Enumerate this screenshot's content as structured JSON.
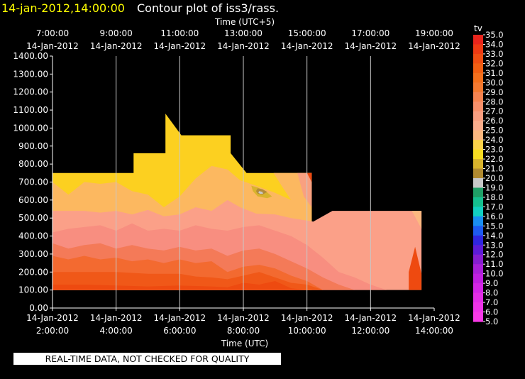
{
  "header": {
    "timestamp": "14-jan-2012,14:00:00",
    "title": "Contour plot of iss3/rass."
  },
  "footer": {
    "quality_note": "REAL-TIME DATA, NOT CHECKED FOR QUALITY"
  },
  "chart_data": {
    "type": "heatmap",
    "title": "Contour plot of iss3/rass.",
    "timestamp": "14-jan-2012,14:00:00",
    "top_axis": {
      "label": "Time (UTC+5)",
      "ticks": [
        {
          "time": "7:00:00",
          "date": "14-Jan-2012"
        },
        {
          "time": "9:00:00",
          "date": "14-Jan-2012"
        },
        {
          "time": "11:00:00",
          "date": "14-Jan-2012"
        },
        {
          "time": "13:00:00",
          "date": "14-Jan-2012"
        },
        {
          "time": "15:00:00",
          "date": "14-Jan-2012"
        },
        {
          "time": "17:00:00",
          "date": "14-Jan-2012"
        },
        {
          "time": "19:00:00",
          "date": "14-Jan-2012"
        }
      ]
    },
    "bottom_axis": {
      "label": "Time (UTC)",
      "ticks": [
        {
          "date": "14-Jan-2012",
          "time": "2:00:00"
        },
        {
          "date": "14-Jan-2012",
          "time": "4:00:00"
        },
        {
          "date": "14-Jan-2012",
          "time": "6:00:00"
        },
        {
          "date": "14-Jan-2012",
          "time": "8:00:00"
        },
        {
          "date": "14-Jan-2012",
          "time": "10:00:00"
        },
        {
          "date": "14-Jan-2012",
          "time": "12:00:00"
        },
        {
          "date": "14-Jan-2012",
          "time": "14:00:00"
        }
      ],
      "range_hours": [
        2,
        14
      ]
    },
    "y_axis": {
      "label": "",
      "ticks": [
        "1400.00",
        "1300.00",
        "1200.00",
        "1100.00",
        "1000.00",
        "900.00",
        "800.00",
        "700.00",
        "600.00",
        "500.00",
        "400.00",
        "300.00",
        "200.00",
        "100.00",
        "0.00"
      ],
      "ylim": [
        0,
        1400
      ]
    },
    "grid": true,
    "colorbar": {
      "label": "tv",
      "levels": [
        "35.0",
        "34.0",
        "33.0",
        "32.0",
        "31.0",
        "30.0",
        "29.0",
        "28.0",
        "27.0",
        "26.0",
        "25.0",
        "24.0",
        "23.0",
        "22.0",
        "21.0",
        "20.0",
        "19.0",
        "18.0",
        "17.0",
        "16.0",
        "15.0",
        "14.0",
        "13.0",
        "12.0",
        "11.0",
        "10.0",
        "9.0",
        "8.0",
        "7.0",
        "6.0",
        "5.0"
      ],
      "colors": [
        "#e8251c",
        "#ee3a13",
        "#f04e12",
        "#f25f12",
        "#f4701c",
        "#f57a30",
        "#f78450",
        "#f8906a",
        "#f99e80",
        "#fbad8c",
        "#fcb880",
        "#fbd24a",
        "#f8dc22",
        "#d8b32c",
        "#b08a30",
        "#c8c8c8",
        "#1f9f66",
        "#15bf8f",
        "#12cfc1",
        "#1a8ef0",
        "#1e5af0",
        "#3026e0",
        "#5d1cd8",
        "#861ed0",
        "#a820d8",
        "#c020e0",
        "#d426e6",
        "#e42ee6",
        "#f034e8",
        "#fa3ae8"
      ],
      "position": "right"
    },
    "contours": [
      {
        "level": "23.0",
        "color": "#fcd020",
        "points": [
          [
            2.0,
            100
          ],
          [
            2.0,
            750
          ],
          [
            4.55,
            750
          ],
          [
            4.55,
            860
          ],
          [
            5.55,
            860
          ],
          [
            5.55,
            1080
          ],
          [
            6.05,
            960
          ],
          [
            7.6,
            960
          ],
          [
            7.6,
            860
          ],
          [
            8.1,
            750
          ],
          [
            10.15,
            750
          ],
          [
            10.15,
            100
          ]
        ]
      },
      {
        "level": "24.0",
        "color": "#fcb860",
        "points": [
          [
            2.0,
            100
          ],
          [
            2.0,
            700
          ],
          [
            2.5,
            630
          ],
          [
            3.0,
            700
          ],
          [
            3.5,
            690
          ],
          [
            4.0,
            700
          ],
          [
            4.5,
            650
          ],
          [
            5.0,
            630
          ],
          [
            5.5,
            560
          ],
          [
            6.0,
            620
          ],
          [
            6.5,
            720
          ],
          [
            7.0,
            790
          ],
          [
            7.5,
            770
          ],
          [
            7.9,
            710
          ],
          [
            8.4,
            680
          ],
          [
            9.0,
            640
          ],
          [
            9.5,
            600
          ],
          [
            10.15,
            610
          ],
          [
            10.15,
            100
          ]
        ]
      },
      {
        "level": "25.0",
        "color": "#fba088",
        "points": [
          [
            2.0,
            100
          ],
          [
            2.0,
            540
          ],
          [
            2.5,
            540
          ],
          [
            3.0,
            540
          ],
          [
            3.5,
            530
          ],
          [
            4.0,
            540
          ],
          [
            4.5,
            520
          ],
          [
            5.0,
            545
          ],
          [
            5.5,
            510
          ],
          [
            6.0,
            520
          ],
          [
            6.5,
            560
          ],
          [
            7.0,
            540
          ],
          [
            7.5,
            600
          ],
          [
            7.9,
            560
          ],
          [
            8.4,
            525
          ],
          [
            9.0,
            520
          ],
          [
            9.5,
            500
          ],
          [
            10.2,
            480
          ],
          [
            10.8,
            540
          ],
          [
            13.6,
            540
          ],
          [
            13.6,
            100
          ]
        ]
      },
      {
        "level": "26.0",
        "color": "#f88e80",
        "points": [
          [
            2.0,
            100
          ],
          [
            2.0,
            420
          ],
          [
            2.5,
            440
          ],
          [
            3.0,
            450
          ],
          [
            3.5,
            460
          ],
          [
            4.0,
            430
          ],
          [
            4.5,
            470
          ],
          [
            5.0,
            430
          ],
          [
            5.5,
            440
          ],
          [
            6.0,
            430
          ],
          [
            6.5,
            460
          ],
          [
            7.0,
            440
          ],
          [
            7.5,
            430
          ],
          [
            8.0,
            450
          ],
          [
            8.5,
            460
          ],
          [
            9.0,
            430
          ],
          [
            9.5,
            400
          ],
          [
            10.0,
            350
          ],
          [
            10.5,
            280
          ],
          [
            11.0,
            200
          ],
          [
            11.5,
            170
          ],
          [
            12.0,
            130
          ],
          [
            12.5,
            100
          ]
        ]
      },
      {
        "level": "27.0",
        "color": "#f47a58",
        "points": [
          [
            2.0,
            100
          ],
          [
            2.0,
            360
          ],
          [
            2.5,
            330
          ],
          [
            3.0,
            350
          ],
          [
            3.5,
            360
          ],
          [
            4.0,
            330
          ],
          [
            4.5,
            350
          ],
          [
            5.0,
            330
          ],
          [
            5.5,
            320
          ],
          [
            6.0,
            340
          ],
          [
            6.5,
            320
          ],
          [
            7.0,
            330
          ],
          [
            7.5,
            290
          ],
          [
            8.0,
            320
          ],
          [
            8.5,
            330
          ],
          [
            9.0,
            300
          ],
          [
            9.5,
            260
          ],
          [
            10.0,
            220
          ],
          [
            10.5,
            170
          ],
          [
            11.0,
            130
          ],
          [
            11.5,
            100
          ]
        ]
      },
      {
        "level": "28.0",
        "color": "#f36a30",
        "points": [
          [
            2.0,
            100
          ],
          [
            2.0,
            290
          ],
          [
            2.5,
            270
          ],
          [
            3.0,
            290
          ],
          [
            3.5,
            270
          ],
          [
            4.0,
            280
          ],
          [
            4.5,
            260
          ],
          [
            5.0,
            270
          ],
          [
            5.5,
            250
          ],
          [
            6.0,
            270
          ],
          [
            6.5,
            250
          ],
          [
            7.0,
            260
          ],
          [
            7.5,
            200
          ],
          [
            8.0,
            230
          ],
          [
            8.5,
            240
          ],
          [
            9.0,
            220
          ],
          [
            9.5,
            180
          ],
          [
            10.0,
            150
          ],
          [
            10.5,
            100
          ]
        ]
      },
      {
        "level": "29.0",
        "color": "#f05818",
        "points": [
          [
            2.0,
            100
          ],
          [
            2.0,
            200
          ],
          [
            3.0,
            200
          ],
          [
            4.0,
            200
          ],
          [
            5.0,
            190
          ],
          [
            6.0,
            190
          ],
          [
            6.5,
            175
          ],
          [
            7.0,
            170
          ],
          [
            7.5,
            160
          ],
          [
            8.0,
            180
          ],
          [
            8.5,
            200
          ],
          [
            9.0,
            170
          ],
          [
            9.5,
            140
          ],
          [
            10.0,
            130
          ],
          [
            10.5,
            100
          ]
        ]
      },
      {
        "level": "30.0",
        "color": "#ee4a10",
        "points": [
          [
            2.0,
            100
          ],
          [
            2.0,
            130
          ],
          [
            3.0,
            130
          ],
          [
            4.0,
            125
          ],
          [
            5.0,
            120
          ],
          [
            6.0,
            125
          ],
          [
            7.0,
            120
          ],
          [
            7.5,
            115
          ],
          [
            8.0,
            140
          ],
          [
            8.5,
            130
          ],
          [
            9.0,
            150
          ],
          [
            9.5,
            110
          ],
          [
            10.0,
            100
          ]
        ]
      },
      {
        "level": "30.0",
        "color": "#ee4a10",
        "points": [
          [
            13.2,
            100
          ],
          [
            13.2,
            200
          ],
          [
            13.4,
            340
          ],
          [
            13.6,
            190
          ],
          [
            13.6,
            100
          ]
        ]
      },
      {
        "level": "24.0",
        "color": "#fcb880",
        "points": [
          [
            13.3,
            540
          ],
          [
            13.6,
            540
          ],
          [
            13.6,
            440
          ]
        ]
      },
      {
        "level": "22.0",
        "color": "#d8b32c",
        "points": [
          [
            8.25,
            680
          ],
          [
            8.45,
            670
          ],
          [
            8.7,
            650
          ],
          [
            8.9,
            620
          ],
          [
            8.75,
            610
          ],
          [
            8.45,
            620
          ],
          [
            8.3,
            650
          ]
        ]
      },
      {
        "level": "21.0",
        "color": "#b28b3a",
        "points": [
          [
            8.45,
            665
          ],
          [
            8.6,
            660
          ],
          [
            8.75,
            645
          ],
          [
            8.6,
            630
          ],
          [
            8.45,
            635
          ],
          [
            8.4,
            650
          ]
        ]
      },
      {
        "level": "20.0",
        "color": "#c8c8c8",
        "points": [
          [
            8.5,
            650
          ],
          [
            8.6,
            645
          ],
          [
            8.62,
            635
          ],
          [
            8.52,
            635
          ],
          [
            8.47,
            642
          ]
        ]
      },
      {
        "level": "24.0",
        "color": "#fcb860",
        "points": [
          [
            8.95,
            750
          ],
          [
            10.15,
            750
          ],
          [
            10.15,
            560
          ],
          [
            9.5,
            600
          ],
          [
            9.2,
            680
          ]
        ]
      },
      {
        "level": "25.0",
        "color": "#f9a080",
        "points": [
          [
            9.7,
            750
          ],
          [
            10.15,
            750
          ],
          [
            10.15,
            560
          ],
          [
            9.9,
            620
          ]
        ]
      },
      {
        "level": "30.0",
        "color": "#ee4a10",
        "points": [
          [
            10.0,
            750
          ],
          [
            10.15,
            750
          ],
          [
            10.15,
            700
          ]
        ]
      }
    ]
  }
}
